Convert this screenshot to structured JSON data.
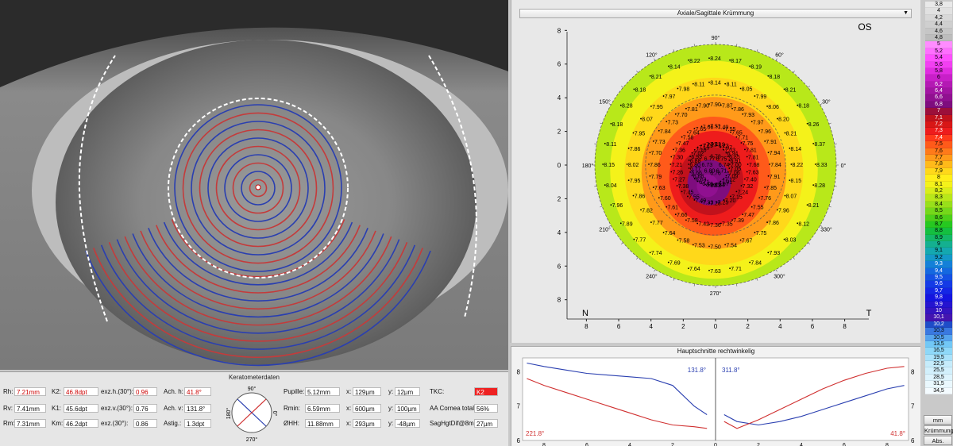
{
  "keratometer": {
    "title": "Keratometerdaten",
    "col1": [
      {
        "label": "Rh:",
        "value": "7.21mm",
        "highlight": true
      },
      {
        "label": "Rv:",
        "value": "7.41mm",
        "highlight": false
      },
      {
        "label": "Rm:",
        "value": "7.31mm",
        "highlight": false
      }
    ],
    "col2": [
      {
        "label": "K2:",
        "value": "46.8dpt",
        "highlight": true
      },
      {
        "label": "K1:",
        "value": "45.6dpt",
        "highlight": false
      },
      {
        "label": "Km:",
        "value": "46.2dpt",
        "highlight": false
      }
    ],
    "col3": [
      {
        "label": "exz.h.(30°):",
        "value": "0.96",
        "highlight": true
      },
      {
        "label": "exz.v.(30°):",
        "value": "0.76",
        "highlight": false
      },
      {
        "label": "exz.(30°):",
        "value": "0.86",
        "highlight": false
      }
    ],
    "col4": [
      {
        "label": "Ach. h:",
        "value": "41.8°",
        "highlight": true
      },
      {
        "label": "Ach. v:",
        "value": "131.8°",
        "highlight": false
      },
      {
        "label": "Astig.:",
        "value": "1.3dpt",
        "highlight": false
      }
    ],
    "dial": {
      "top": "90°",
      "bottom": "270°",
      "left": "180°",
      "right": "0°"
    },
    "col5": [
      {
        "label": "Pupille:",
        "value": "5.12mm"
      },
      {
        "label": "Rmin:",
        "value": "6.59mm"
      },
      {
        "label": "ØHH:",
        "value": "11.88mm"
      }
    ],
    "col6": [
      {
        "label": "x:",
        "value": "129µm"
      },
      {
        "label": "x:",
        "value": "600µm"
      },
      {
        "label": "x:",
        "value": "293µm"
      }
    ],
    "col7": [
      {
        "label": "y:",
        "value": "12µm"
      },
      {
        "label": "y:",
        "value": "100µm"
      },
      {
        "label": "y:",
        "value": "-48µm"
      }
    ],
    "col8": [
      {
        "label": "TKC:",
        "value": "K2"
      },
      {
        "label": "AA Cornea total:",
        "value": "56%"
      },
      {
        "label": "SagHgtDif@8mm:",
        "value": "27µm"
      }
    ]
  },
  "map": {
    "dropdown": "Axiale/Sagittale Krümmung",
    "eye": "OS",
    "nasal": "N",
    "temporal": "T",
    "angle_labels": [
      "90°",
      "60°",
      "30°",
      "0°",
      "330°",
      "300°",
      "270°",
      "240°",
      "210°",
      "180°",
      "150°",
      "120°"
    ],
    "y_ticks": [
      "8",
      "6",
      "4",
      "2",
      "0",
      "2",
      "4",
      "6",
      "8"
    ],
    "x_ticks": [
      "8",
      "6",
      "4",
      "2",
      "0",
      "2",
      "4",
      "6",
      "8"
    ],
    "values": {
      "radius_8": [
        "8.24",
        "8.17",
        "8.19",
        "8.18",
        "8.21",
        "8.18",
        "8.26",
        "8.37",
        "8.33",
        "8.28",
        "8.21",
        "8.12",
        "8.03",
        "7.93",
        "7.84",
        "7.71",
        "7.63",
        "7.64",
        "7.69",
        "7.74",
        "7.77",
        "7.89",
        "7.96",
        "8.04",
        "8.15",
        "8.11",
        "8.18",
        "8.28",
        "8.18",
        "8.21",
        "8.14",
        "8.22"
      ],
      "radius_6": [
        "8.14",
        "8.11",
        "8.05",
        "7.99",
        "8.06",
        "8.20",
        "8.21",
        "8.14",
        "8.22",
        "8.15",
        "8.07",
        "7.96",
        "7.86",
        "7.75",
        "7.67",
        "7.54",
        "7.50",
        "7.53",
        "7.58",
        "7.64",
        "7.77",
        "7.82",
        "7.86",
        "7.95",
        "8.02",
        "7.86",
        "7.95",
        "8.07",
        "7.95",
        "7.97",
        "7.98",
        "8.11"
      ],
      "radius_4": [
        "7.90",
        "7.87",
        "7.86",
        "7.93",
        "7.97",
        "7.96",
        "7.91",
        "7.94",
        "7.84",
        "7.91",
        "7.85",
        "7.76",
        "7.55",
        "7.47",
        "7.39",
        "7.35",
        "7.36",
        "7.42",
        "7.58",
        "7.66",
        "7.61",
        "7.60",
        "7.63",
        "7.79",
        "7.86",
        "7.70",
        "7.73",
        "7.84",
        "7.73",
        "7.70",
        "7.81",
        "7.90"
      ],
      "radius_2": [
        "7.51",
        "7.49",
        "7.55",
        "7.65",
        "7.71",
        "7.75",
        "7.81",
        "7.81",
        "7.68",
        "7.63",
        "7.40",
        "7.32",
        "7.24",
        "7.15",
        "7.20",
        "7.23",
        "7.28",
        "7.33",
        "7.49",
        "7.55",
        "7.45",
        "7.38",
        "7.27",
        "7.26",
        "7.21",
        "7.30",
        "7.36",
        "7.47",
        "7.58",
        "7.64",
        "7.65",
        "7.66"
      ],
      "radius_1": [
        "7.21",
        "7.19",
        "7.22",
        "7.07",
        "7.03",
        "6.94",
        "6.85",
        "6.91",
        "7.00",
        "7.05",
        "7.06",
        "7.09",
        "7.12",
        "7.01",
        "6.97",
        "6.84",
        "6.83",
        "6.82",
        "6.76",
        "6.71",
        "6.63",
        "6.68",
        "6.66",
        "6.77",
        "6.80",
        "6.88",
        "6.93",
        "7.02",
        "7.10",
        "7.15",
        "7.19",
        "7.21"
      ],
      "center": [
        "6.78",
        "6.75",
        "6.74",
        "6.71",
        "6.76",
        "6.80",
        "6.73",
        "6.77"
      ]
    }
  },
  "profile": {
    "title": "Hauptschnitte rechtwinkelig",
    "axis_labels": {
      "blue_left": "131.8°",
      "blue_right": "311.8°",
      "red_left": "221.8°",
      "red_right": "41.8°"
    },
    "y_ticks": [
      "8",
      "7",
      "6"
    ],
    "x_ticks": [
      "8",
      "6",
      "4",
      "2",
      "0",
      "2",
      "4",
      "6",
      "8"
    ],
    "colors": {
      "blue": "#2a3fb0",
      "red": "#d03030"
    },
    "chart_data": {
      "type": "line",
      "x": [
        -8.8,
        -8,
        -7,
        -6,
        -5,
        -4,
        -3,
        -2,
        -1,
        -0.4,
        0.4,
        1,
        2,
        3,
        4,
        5,
        6,
        7,
        8,
        8.8
      ],
      "series": [
        {
          "name": "131.8° / 311.8°",
          "values": [
            8.25,
            8.15,
            8.05,
            7.95,
            7.9,
            7.85,
            7.8,
            7.6,
            7.0,
            6.75,
            6.75,
            6.55,
            6.45,
            6.55,
            6.7,
            6.9,
            7.1,
            7.3,
            7.5,
            7.6
          ]
        },
        {
          "name": "221.8° / 41.8°",
          "values": [
            7.8,
            7.6,
            7.4,
            7.2,
            7.0,
            6.8,
            6.6,
            6.45,
            6.4,
            6.35,
            6.55,
            6.35,
            6.6,
            6.9,
            7.2,
            7.5,
            7.75,
            7.95,
            8.1,
            8.15
          ]
        }
      ],
      "ylim": [
        6,
        8.4
      ],
      "xlim": [
        -9,
        9
      ]
    }
  },
  "scale": {
    "values": [
      "3,8",
      "4",
      "4,2",
      "4,4",
      "4,6",
      "4,8",
      "5",
      "5,2",
      "5,4",
      "5,6",
      "5,8",
      "6",
      "6,2",
      "6,4",
      "6,6",
      "6,8",
      "7",
      "7,1",
      "7,2",
      "7,3",
      "7,4",
      "7,5",
      "7,6",
      "7,7",
      "7,8",
      "7,9",
      "8",
      "8,1",
      "8,2",
      "8,3",
      "8,4",
      "8,5",
      "8,6",
      "8,7",
      "8,8",
      "8,9",
      "9",
      "9,1",
      "9,2",
      "9,3",
      "9,4",
      "9,5",
      "9,6",
      "9,7",
      "9,8",
      "9,9",
      "10",
      "10,1",
      "10,2",
      "10,3",
      "10,5",
      "13,5",
      "16,5",
      "19,5",
      "22,5",
      "25,5",
      "28,5",
      "31,5",
      "34,5"
    ],
    "colors": [
      "#e9e9e9",
      "#e1e1e1",
      "#d8d8d8",
      "#cfcfcf",
      "#c6c6c6",
      "#bdbdbd",
      "#ff8cff",
      "#ff6eff",
      "#ff4fff",
      "#f23ff2",
      "#e02ce0",
      "#c81fc8",
      "#b419b4",
      "#a214a2",
      "#901090",
      "#7e0d7e",
      "#9b0f3a",
      "#c1121c",
      "#d81616",
      "#ee1c1c",
      "#ff3a1a",
      "#ff5a1a",
      "#ff7a1a",
      "#ff9a1a",
      "#ffba1a",
      "#ffd81a",
      "#ffee1a",
      "#f4f21a",
      "#d8ee1a",
      "#b8e81a",
      "#98e01a",
      "#74d81a",
      "#4cd01a",
      "#26c820",
      "#14bf40",
      "#14b868",
      "#14b090",
      "#14a8b0",
      "#1498c8",
      "#1480d8",
      "#1468e0",
      "#1450e4",
      "#143ae6",
      "#1426e6",
      "#1414e0",
      "#2414d0",
      "#3414c0",
      "#4414b0",
      "#1e4cc8",
      "#3a78e0",
      "#56a4ee",
      "#72c8f6",
      "#8ed8f8",
      "#aae2fa",
      "#c6ecfb",
      "#d2f0fc",
      "#def4fd",
      "#eaf8fe",
      "#f4fbff"
    ]
  },
  "scale_buttons": [
    "mm",
    "Krümmung",
    "Abs."
  ]
}
